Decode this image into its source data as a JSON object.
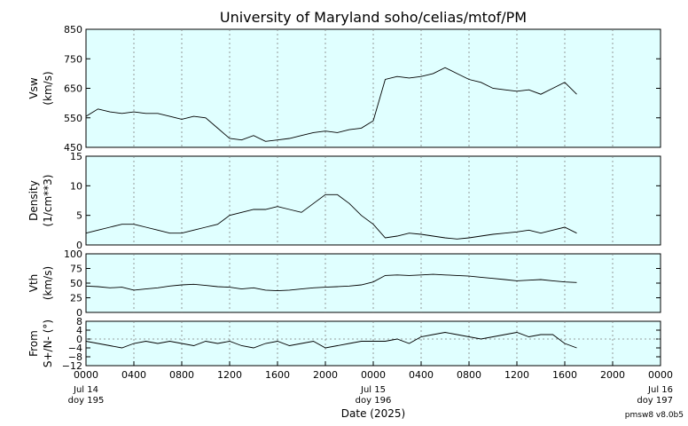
{
  "title": "University of Maryland  soho/celias/mtof/PM",
  "xlabel": "Date (2025)",
  "footer": "pmsw8 v8.0b5",
  "colors": {
    "panel_bg": "#e0ffff",
    "line": "#000000",
    "grid": "#808080"
  },
  "x_ticks": {
    "times": [
      "0000",
      "0400",
      "0800",
      "1200",
      "1600",
      "2000",
      "0000",
      "0400",
      "0800",
      "1200",
      "1600",
      "2000",
      "0000"
    ],
    "day_labels": [
      {
        "hour": 0,
        "date": "Jul 14",
        "doy": "doy 195"
      },
      {
        "hour": 24,
        "date": "Jul 15",
        "doy": "doy 196"
      },
      {
        "hour": 48,
        "date": "Jul 16",
        "doy": "doy 197"
      }
    ]
  },
  "chart_data": [
    {
      "type": "line",
      "ylabel": "Vsw",
      "ylabel2": "(km/s)",
      "ylim": [
        450,
        850
      ],
      "yticks": [
        "850",
        "750",
        "650",
        "550",
        "450"
      ],
      "grid": true,
      "x_units": "hours since 0000 Jul 14 2025",
      "x": [
        0,
        1,
        2,
        3,
        4,
        5,
        6,
        7,
        8,
        9,
        10,
        11,
        12,
        13,
        14,
        15,
        16,
        17,
        18,
        19,
        20,
        21,
        22,
        23,
        24,
        25,
        26,
        27,
        28,
        29,
        30,
        31,
        32,
        33,
        34,
        35,
        36,
        37,
        38,
        39,
        40,
        41
      ],
      "y": [
        555,
        580,
        570,
        565,
        570,
        565,
        565,
        555,
        545,
        555,
        550,
        515,
        480,
        475,
        490,
        470,
        475,
        480,
        490,
        500,
        505,
        500,
        510,
        515,
        540,
        680,
        690,
        685,
        690,
        700,
        720,
        700,
        680,
        670,
        650,
        645,
        640,
        645,
        630,
        650,
        670,
        630
      ]
    },
    {
      "type": "line",
      "ylabel": "Density",
      "ylabel2": "(1/cm**3)",
      "ylim": [
        0,
        15
      ],
      "yticks": [
        "15",
        "10",
        "5",
        "0"
      ],
      "grid": true,
      "x": [
        0,
        1,
        2,
        3,
        4,
        5,
        6,
        7,
        8,
        9,
        10,
        11,
        12,
        13,
        14,
        15,
        16,
        17,
        18,
        19,
        20,
        21,
        22,
        23,
        24,
        25,
        26,
        27,
        28,
        29,
        30,
        31,
        32,
        33,
        34,
        35,
        36,
        37,
        38,
        39,
        40,
        41
      ],
      "y": [
        2,
        2.5,
        3,
        3.5,
        3.5,
        3,
        2.5,
        2,
        2,
        2.5,
        3,
        3.5,
        5,
        5.5,
        6,
        6,
        6.5,
        6,
        5.5,
        7,
        8.5,
        8.5,
        7,
        5,
        3.5,
        1.2,
        1.5,
        2,
        1.8,
        1.5,
        1.2,
        1,
        1.2,
        1.5,
        1.8,
        2,
        2.2,
        2.5,
        2,
        2.5,
        3,
        2
      ]
    },
    {
      "type": "line",
      "ylabel": "Vth",
      "ylabel2": "(km/s)",
      "ylim": [
        0,
        100
      ],
      "yticks": [
        "100",
        "75",
        "50",
        "25",
        "0"
      ],
      "grid": true,
      "x": [
        0,
        1,
        2,
        3,
        4,
        5,
        6,
        7,
        8,
        9,
        10,
        11,
        12,
        13,
        14,
        15,
        16,
        17,
        18,
        19,
        20,
        21,
        22,
        23,
        24,
        25,
        26,
        27,
        28,
        29,
        30,
        31,
        32,
        33,
        34,
        35,
        36,
        37,
        38,
        39,
        40,
        41
      ],
      "y": [
        45,
        44,
        42,
        43,
        38,
        40,
        42,
        45,
        47,
        48,
        46,
        44,
        43,
        40,
        42,
        38,
        37,
        38,
        40,
        42,
        43,
        44,
        45,
        47,
        52,
        63,
        64,
        63,
        64,
        65,
        64,
        63,
        62,
        60,
        58,
        56,
        54,
        55,
        56,
        54,
        52,
        51
      ]
    },
    {
      "type": "line",
      "ylabel": "From",
      "ylabel2": "S+/N- (°)",
      "ylim": [
        -12,
        8
      ],
      "yticks": [
        "8",
        "4",
        "0",
        "−4",
        "−8",
        "−12"
      ],
      "grid": true,
      "x": [
        0,
        1,
        2,
        3,
        4,
        5,
        6,
        7,
        8,
        9,
        10,
        11,
        12,
        13,
        14,
        15,
        16,
        17,
        18,
        19,
        20,
        21,
        22,
        23,
        24,
        25,
        26,
        27,
        28,
        29,
        30,
        31,
        32,
        33,
        34,
        35,
        36,
        37,
        38,
        39,
        40,
        41
      ],
      "y": [
        -1,
        -2,
        -3,
        -4,
        -2,
        -1,
        -2,
        -1,
        -2,
        -3,
        -1,
        -2,
        -1,
        -3,
        -4,
        -2,
        -1,
        -3,
        -2,
        -1,
        -4,
        -3,
        -2,
        -1,
        -1,
        -1,
        0,
        -2,
        1,
        2,
        3,
        2,
        1,
        0,
        1,
        2,
        3,
        1,
        2,
        2,
        -2,
        -4
      ]
    }
  ]
}
